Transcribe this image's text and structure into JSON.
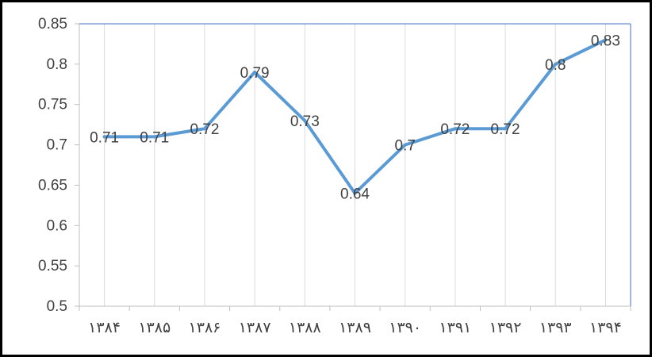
{
  "chart_data": {
    "type": "line",
    "title": "",
    "xlabel": "",
    "ylabel": "",
    "categories": [
      "۱۳۸۴",
      "۱۳۸۵",
      "۱۳۸۶",
      "۱۳۸۷",
      "۱۳۸۸",
      "۱۳۸۹",
      "۱۳۹۰",
      "۱۳۹۱",
      "۱۳۹۲",
      "۱۳۹۳",
      "۱۳۹۴"
    ],
    "series": [
      {
        "values": [
          0.71,
          0.71,
          0.72,
          0.79,
          0.73,
          0.64,
          0.7,
          0.72,
          0.72,
          0.8,
          0.83
        ]
      }
    ],
    "data_labels": [
      "0.71",
      "0.71",
      "0.72",
      "0.79",
      "0.73",
      "0.64",
      "0.7",
      "0.72",
      "0.72",
      "0.8",
      "0.83"
    ],
    "y_tick_labels": [
      "0.5",
      "0.55",
      "0.6",
      "0.65",
      "0.7",
      "0.75",
      "0.8",
      "0.85"
    ],
    "ylim": [
      0.5,
      0.85
    ],
    "grid": "vertical",
    "legend": "none",
    "colors": {
      "line": "#5b9bd5",
      "grid": "#d9d9d9",
      "axis": "#bfbfbf",
      "plot_border": "#4472c4",
      "text": "#404040"
    }
  }
}
